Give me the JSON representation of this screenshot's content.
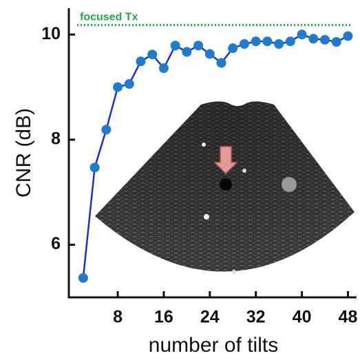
{
  "chart_data": {
    "type": "line",
    "x_label": "number of tilts",
    "y_label": "CNR  (dB)",
    "x": [
      2,
      4,
      6,
      8,
      10,
      12,
      14,
      16,
      18,
      20,
      22,
      24,
      26,
      28,
      30,
      32,
      34,
      36,
      38,
      40,
      42,
      44,
      46,
      48
    ],
    "series": [
      {
        "color": "#1a2ed6",
        "marker_color": "#1f7ccc",
        "values": [
          5.37,
          7.47,
          8.19,
          9.0,
          9.06,
          9.49,
          9.62,
          9.36,
          9.79,
          9.67,
          9.79,
          9.63,
          9.46,
          9.74,
          9.82,
          9.87,
          9.87,
          9.82,
          9.87,
          10.0,
          9.92,
          9.9,
          9.86,
          9.97
        ]
      }
    ],
    "reference_line": {
      "label": "focused Tx",
      "value": 10.18,
      "color": "#1faa4a"
    },
    "xlim": [
      -0.5,
      49.5
    ],
    "ylim": [
      5,
      10.5
    ],
    "xticks": [
      8,
      16,
      24,
      32,
      40,
      48
    ],
    "yticks": [
      6,
      8,
      10
    ]
  }
}
